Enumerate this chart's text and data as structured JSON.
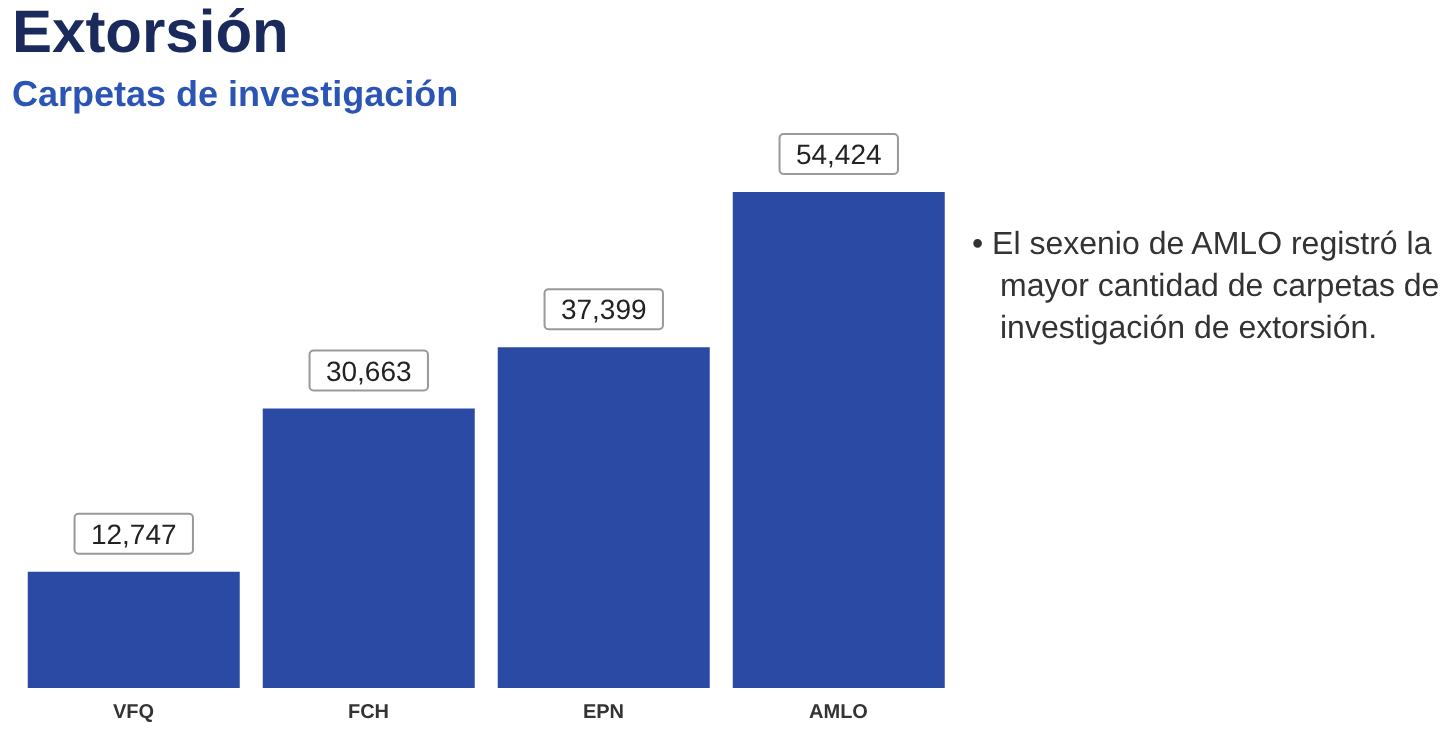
{
  "chart_data": {
    "type": "bar",
    "title": "Extorsión",
    "subtitle": "Carpetas de investigación",
    "categories": [
      "VFQ",
      "FCH",
      "EPN",
      "AMLO"
    ],
    "values": [
      12747,
      30663,
      37399,
      54424
    ],
    "color": "#2b4aa3",
    "value_labels": [
      "12,747",
      "30,663",
      "37,399",
      "54,424"
    ],
    "tick_labels": "x",
    "annotations": [
      "• El sexenio de AMLO registró la mayor cantidad de carpetas de investigación de extorsión."
    ]
  }
}
